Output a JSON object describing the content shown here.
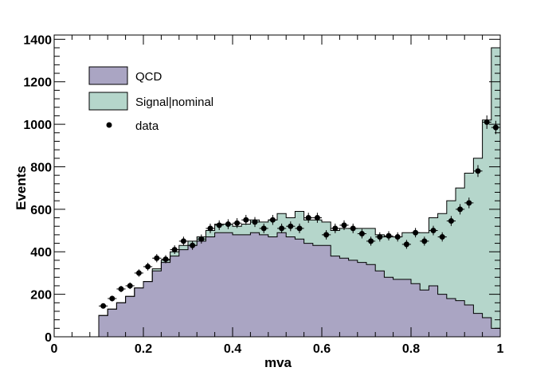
{
  "chart_data": {
    "type": "histogram",
    "xlabel": "mva",
    "ylabel": "Events",
    "xlim": [
      0,
      1
    ],
    "ylim": [
      0,
      1420
    ],
    "x_ticks": [
      0,
      0.2,
      0.4,
      0.6,
      0.8,
      1
    ],
    "x_tick_labels": [
      "0",
      "0.2",
      "0.4",
      "0.6",
      "0.8",
      "1"
    ],
    "y_ticks": [
      0,
      200,
      400,
      600,
      800,
      1000,
      1200,
      1400
    ],
    "y_tick_labels": [
      "0",
      "200",
      "400",
      "600",
      "800",
      "1000",
      "1200",
      "1400"
    ],
    "bin_width": 0.02,
    "bin_start": 0.1,
    "stacked": true,
    "legend_position": "top-left",
    "series": [
      {
        "name": "QCD",
        "kind": "stacked-histogram",
        "color": "#aaa5c3",
        "values": [
          100,
          130,
          160,
          190,
          230,
          260,
          310,
          350,
          380,
          410,
          430,
          450,
          470,
          490,
          490,
          480,
          480,
          490,
          480,
          470,
          490,
          470,
          460,
          440,
          430,
          430,
          380,
          370,
          360,
          350,
          340,
          310,
          280,
          270,
          270,
          250,
          220,
          240,
          200,
          180,
          170,
          150,
          110,
          90,
          40
        ]
      },
      {
        "name": "Signal|nominal",
        "kind": "stacked-histogram",
        "color": "#b5d6cb",
        "values": [
          0,
          0,
          0,
          0,
          0,
          0,
          10,
          10,
          20,
          20,
          20,
          20,
          30,
          40,
          40,
          40,
          50,
          60,
          60,
          80,
          90,
          90,
          130,
          110,
          120,
          110,
          120,
          140,
          150,
          160,
          170,
          170,
          190,
          200,
          220,
          240,
          270,
          320,
          380,
          460,
          530,
          620,
          730,
          930,
          1320
        ]
      },
      {
        "name": "data",
        "kind": "points",
        "color": "#000000",
        "x": [
          0.11,
          0.13,
          0.15,
          0.17,
          0.19,
          0.21,
          0.23,
          0.25,
          0.27,
          0.29,
          0.31,
          0.33,
          0.35,
          0.37,
          0.39,
          0.41,
          0.43,
          0.45,
          0.47,
          0.49,
          0.51,
          0.53,
          0.55,
          0.57,
          0.59,
          0.61,
          0.63,
          0.65,
          0.67,
          0.69,
          0.71,
          0.73,
          0.75,
          0.77,
          0.79,
          0.81,
          0.83,
          0.85,
          0.87,
          0.89,
          0.91,
          0.93,
          0.95,
          0.97,
          0.99
        ],
        "y": [
          145,
          180,
          225,
          240,
          300,
          330,
          370,
          365,
          410,
          450,
          430,
          460,
          510,
          525,
          530,
          535,
          550,
          540,
          510,
          550,
          510,
          520,
          510,
          560,
          560,
          480,
          510,
          525,
          510,
          485,
          450,
          470,
          475,
          470,
          435,
          490,
          450,
          500,
          470,
          545,
          600,
          630,
          780,
          1010,
          985
        ]
      }
    ]
  }
}
